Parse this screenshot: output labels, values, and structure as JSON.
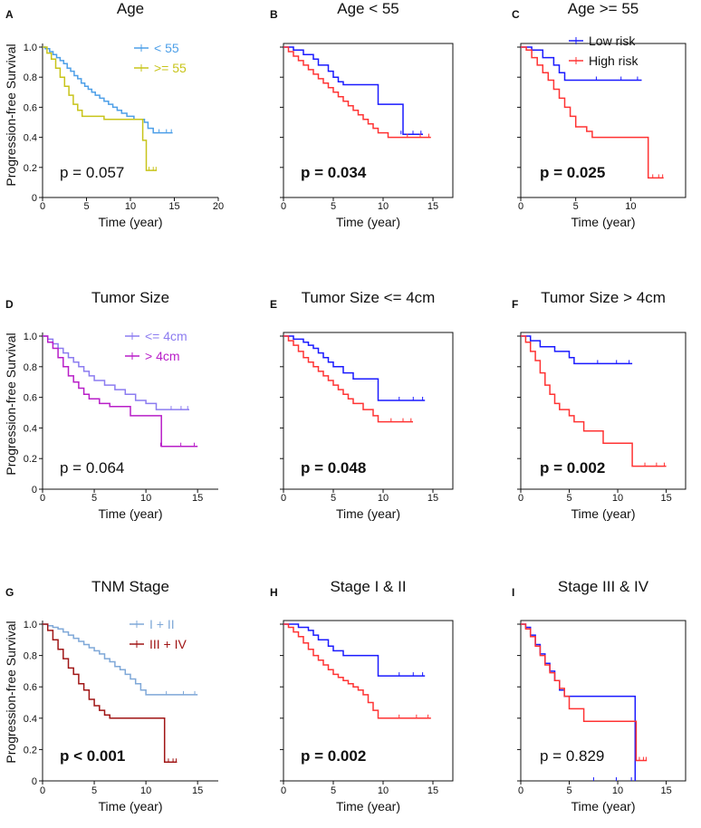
{
  "figure": {
    "y_axis_label": "Progression-free Survival"
  },
  "colors": {
    "low_risk": "#1a1aff",
    "high_risk": "#ff3333",
    "age_lt55": "#4d9fe8",
    "age_ge55": "#c8c41a",
    "size_le4": "#8c7cf0",
    "size_gt4": "#b81ec8",
    "stage_12": "#7fa8d8",
    "stage_34": "#a01515"
  },
  "chart_data": [
    {
      "letter": "A",
      "title": "Age",
      "type": "line",
      "subtype": "kaplan-meier",
      "xlabel": "Time (year)",
      "ylabel": "Progression-free Survival",
      "xlim": [
        0,
        20
      ],
      "ylim": [
        0,
        1.0
      ],
      "xticks": [
        "0",
        "5",
        "10",
        "15",
        "20"
      ],
      "yticks": [
        "0",
        "0.2",
        "0.4",
        "0.6",
        "0.8",
        "1.0"
      ],
      "legend": "top-right",
      "p_value": "p = 0.057",
      "p_bold": false,
      "series": [
        {
          "name": "< 55",
          "color_key": "age_lt55",
          "x": [
            0,
            0.3,
            0.8,
            1.2,
            1.6,
            2.0,
            2.4,
            2.8,
            3.2,
            3.6,
            4.0,
            4.4,
            4.8,
            5.2,
            5.6,
            6.0,
            6.5,
            7.0,
            7.5,
            8.0,
            8.5,
            9.0,
            9.6,
            10.4,
            11.6,
            12.0,
            12.6,
            14.8
          ],
          "y": [
            1.0,
            0.99,
            0.97,
            0.95,
            0.93,
            0.91,
            0.89,
            0.86,
            0.84,
            0.81,
            0.79,
            0.76,
            0.74,
            0.72,
            0.7,
            0.68,
            0.66,
            0.64,
            0.62,
            0.6,
            0.58,
            0.56,
            0.54,
            0.52,
            0.5,
            0.46,
            0.43,
            0.43
          ]
        },
        {
          "name": ">= 55",
          "color_key": "age_ge55",
          "x": [
            0,
            0.5,
            1.0,
            1.5,
            2.0,
            2.5,
            3.0,
            3.5,
            4.0,
            4.5,
            5.5,
            7.0,
            11.4,
            11.8,
            13.0
          ],
          "y": [
            1.0,
            0.96,
            0.92,
            0.86,
            0.8,
            0.74,
            0.68,
            0.62,
            0.58,
            0.54,
            0.54,
            0.52,
            0.38,
            0.18,
            0.18
          ]
        }
      ]
    },
    {
      "letter": "B",
      "title": "Age < 55",
      "type": "line",
      "subtype": "kaplan-meier",
      "xlabel": "Time (year)",
      "xlim": [
        0,
        17
      ],
      "ylim": [
        0,
        1.0
      ],
      "xticks": [
        "0",
        "5",
        "10",
        "15"
      ],
      "p_value": "p = 0.034",
      "p_bold": true,
      "series": [
        {
          "name": "Low risk",
          "color_key": "low_risk",
          "x": [
            0,
            1.0,
            2.0,
            3.0,
            3.5,
            4.5,
            5.0,
            5.5,
            6.0,
            7.0,
            9.5,
            10.0,
            12.0,
            14.0
          ],
          "y": [
            1.0,
            0.98,
            0.95,
            0.92,
            0.88,
            0.84,
            0.8,
            0.77,
            0.75,
            0.75,
            0.62,
            0.62,
            0.42,
            0.42
          ]
        },
        {
          "name": "High risk",
          "color_key": "high_risk",
          "x": [
            0,
            0.5,
            1.0,
            1.5,
            2.0,
            2.5,
            3.0,
            3.5,
            4.0,
            4.5,
            5.0,
            5.5,
            6.0,
            6.5,
            7.0,
            7.5,
            8.0,
            8.5,
            9.0,
            9.5,
            10.5,
            12.0,
            14.8
          ],
          "y": [
            1.0,
            0.97,
            0.94,
            0.91,
            0.88,
            0.85,
            0.82,
            0.79,
            0.76,
            0.73,
            0.7,
            0.67,
            0.64,
            0.61,
            0.58,
            0.55,
            0.52,
            0.49,
            0.46,
            0.43,
            0.4,
            0.4,
            0.4
          ]
        }
      ]
    },
    {
      "letter": "C",
      "title": "Age >= 55",
      "type": "line",
      "subtype": "kaplan-meier",
      "xlabel": "Time (year)",
      "xlim": [
        0,
        15
      ],
      "ylim": [
        0,
        1.0
      ],
      "xticks": [
        "0",
        "5",
        "10"
      ],
      "legend": "top-right",
      "p_value": "p = 0.025",
      "p_bold": true,
      "series": [
        {
          "name": "Low risk",
          "color_key": "low_risk",
          "x": [
            0,
            1.0,
            2.0,
            3.0,
            3.5,
            4.0,
            11.0
          ],
          "y": [
            1.0,
            0.98,
            0.93,
            0.88,
            0.83,
            0.78,
            0.78
          ]
        },
        {
          "name": "High risk",
          "color_key": "high_risk",
          "x": [
            0,
            0.5,
            1.0,
            1.5,
            2.0,
            2.5,
            3.0,
            3.5,
            4.0,
            4.5,
            5.0,
            6.0,
            6.5,
            11.2,
            11.6,
            13.0
          ],
          "y": [
            1.0,
            0.98,
            0.93,
            0.88,
            0.83,
            0.78,
            0.72,
            0.66,
            0.6,
            0.54,
            0.47,
            0.44,
            0.4,
            0.4,
            0.13,
            0.13
          ]
        }
      ]
    },
    {
      "letter": "D",
      "title": "Tumor Size",
      "type": "line",
      "subtype": "kaplan-meier",
      "xlabel": "Time (year)",
      "ylabel": "Progression-free Survival",
      "xlim": [
        0,
        17
      ],
      "ylim": [
        0,
        1.0
      ],
      "xticks": [
        "0",
        "5",
        "10",
        "15"
      ],
      "yticks": [
        "0",
        "0.2",
        "0.4",
        "0.6",
        "0.8",
        "1.0"
      ],
      "legend": "top-right",
      "p_value": "p = 0.064",
      "p_bold": false,
      "series": [
        {
          "name": "<= 4cm",
          "color_key": "size_le4",
          "x": [
            0,
            0.5,
            1.0,
            1.5,
            2.0,
            2.5,
            3.0,
            3.5,
            4.0,
            4.5,
            5.0,
            6.0,
            7.0,
            8.0,
            9.0,
            10.0,
            11.0,
            12.0,
            14.2
          ],
          "y": [
            1.0,
            0.98,
            0.95,
            0.92,
            0.89,
            0.86,
            0.83,
            0.8,
            0.77,
            0.74,
            0.71,
            0.68,
            0.65,
            0.62,
            0.58,
            0.56,
            0.52,
            0.52,
            0.52
          ]
        },
        {
          "name": "> 4cm",
          "color_key": "size_gt4",
          "x": [
            0,
            0.5,
            1.0,
            1.5,
            2.0,
            2.5,
            3.0,
            3.5,
            4.0,
            4.5,
            5.5,
            6.5,
            8.5,
            11.5,
            15.0
          ],
          "y": [
            1.0,
            0.96,
            0.92,
            0.86,
            0.8,
            0.74,
            0.7,
            0.66,
            0.62,
            0.59,
            0.56,
            0.54,
            0.48,
            0.28,
            0.28
          ]
        }
      ]
    },
    {
      "letter": "E",
      "title": "Tumor Size <= 4cm",
      "type": "line",
      "subtype": "kaplan-meier",
      "xlabel": "Time (year)",
      "xlim": [
        0,
        17
      ],
      "ylim": [
        0,
        1.0
      ],
      "xticks": [
        "0",
        "5",
        "10",
        "15"
      ],
      "p_value": "p = 0.048",
      "p_bold": true,
      "series": [
        {
          "name": "Low risk",
          "color_key": "low_risk",
          "x": [
            0,
            1.0,
            2.0,
            2.5,
            3.0,
            3.5,
            4.0,
            4.5,
            5.0,
            6.0,
            7.0,
            9.5,
            10.0,
            14.2
          ],
          "y": [
            1.0,
            0.98,
            0.96,
            0.94,
            0.92,
            0.89,
            0.86,
            0.83,
            0.8,
            0.76,
            0.72,
            0.58,
            0.58,
            0.58
          ]
        },
        {
          "name": "High risk",
          "color_key": "high_risk",
          "x": [
            0,
            0.5,
            1.0,
            1.5,
            2.0,
            2.5,
            3.0,
            3.5,
            4.0,
            4.5,
            5.0,
            5.5,
            6.0,
            6.5,
            7.0,
            8.0,
            9.0,
            9.5,
            13.0
          ],
          "y": [
            1.0,
            0.97,
            0.94,
            0.9,
            0.86,
            0.83,
            0.8,
            0.77,
            0.74,
            0.71,
            0.68,
            0.65,
            0.62,
            0.59,
            0.56,
            0.52,
            0.48,
            0.44,
            0.44
          ]
        }
      ]
    },
    {
      "letter": "F",
      "title": "Tumor Size > 4cm",
      "type": "line",
      "subtype": "kaplan-meier",
      "xlabel": "Time (year)",
      "xlim": [
        0,
        17
      ],
      "ylim": [
        0,
        1.0
      ],
      "xticks": [
        "0",
        "5",
        "10",
        "15"
      ],
      "p_value": "p = 0.002",
      "p_bold": true,
      "series": [
        {
          "name": "Low risk",
          "color_key": "low_risk",
          "x": [
            0,
            1.0,
            2.0,
            3.5,
            5.0,
            5.5,
            11.5
          ],
          "y": [
            1.0,
            0.97,
            0.93,
            0.9,
            0.86,
            0.82,
            0.82
          ]
        },
        {
          "name": "High risk",
          "color_key": "high_risk",
          "x": [
            0,
            0.5,
            1.0,
            1.5,
            2.0,
            2.5,
            3.0,
            3.5,
            4.0,
            5.0,
            5.5,
            6.5,
            8.5,
            11.0,
            11.5,
            15.0
          ],
          "y": [
            1.0,
            0.96,
            0.9,
            0.84,
            0.76,
            0.68,
            0.62,
            0.56,
            0.52,
            0.48,
            0.44,
            0.38,
            0.3,
            0.3,
            0.15,
            0.15
          ]
        }
      ]
    },
    {
      "letter": "G",
      "title": "TNM Stage",
      "type": "line",
      "subtype": "kaplan-meier",
      "xlabel": "Time (year)",
      "ylabel": "Progression-free Survival",
      "xlim": [
        0,
        17
      ],
      "ylim": [
        0,
        1.0
      ],
      "xticks": [
        "0",
        "5",
        "10",
        "15"
      ],
      "yticks": [
        "0",
        "0.2",
        "0.4",
        "0.6",
        "0.8",
        "1.0"
      ],
      "legend": "top-right",
      "p_value": "p < 0.001",
      "p_bold": true,
      "series": [
        {
          "name": "I + II",
          "color_key": "stage_12",
          "x": [
            0,
            0.5,
            1.0,
            1.5,
            2.0,
            2.5,
            3.0,
            3.5,
            4.0,
            4.5,
            5.0,
            5.5,
            6.0,
            6.5,
            7.0,
            7.5,
            8.0,
            8.5,
            9.0,
            9.5,
            10.0,
            15.0
          ],
          "y": [
            1.0,
            0.99,
            0.98,
            0.97,
            0.95,
            0.93,
            0.91,
            0.89,
            0.87,
            0.85,
            0.83,
            0.81,
            0.78,
            0.76,
            0.73,
            0.71,
            0.68,
            0.65,
            0.62,
            0.58,
            0.55,
            0.55
          ]
        },
        {
          "name": "III + IV",
          "color_key": "stage_34",
          "x": [
            0,
            0.5,
            1.0,
            1.5,
            2.0,
            2.5,
            3.0,
            3.5,
            4.0,
            4.5,
            5.0,
            5.5,
            6.0,
            6.5,
            11.5,
            11.8,
            13.0
          ],
          "y": [
            1.0,
            0.96,
            0.9,
            0.84,
            0.78,
            0.72,
            0.68,
            0.62,
            0.58,
            0.52,
            0.48,
            0.45,
            0.42,
            0.4,
            0.4,
            0.12,
            0.12
          ]
        }
      ]
    },
    {
      "letter": "H",
      "title": "Stage I & II",
      "type": "line",
      "subtype": "kaplan-meier",
      "xlabel": "Time (year)",
      "xlim": [
        0,
        17
      ],
      "ylim": [
        0,
        1.0
      ],
      "xticks": [
        "0",
        "5",
        "10",
        "15"
      ],
      "p_value": "p = 0.002",
      "p_bold": true,
      "series": [
        {
          "name": "Low risk",
          "color_key": "low_risk",
          "x": [
            0,
            1.5,
            2.5,
            3.0,
            3.5,
            4.5,
            5.0,
            6.0,
            9.5,
            10.0,
            14.2
          ],
          "y": [
            1.0,
            0.98,
            0.96,
            0.93,
            0.9,
            0.86,
            0.83,
            0.8,
            0.67,
            0.67,
            0.67
          ]
        },
        {
          "name": "High risk",
          "color_key": "high_risk",
          "x": [
            0,
            0.5,
            1.0,
            1.5,
            2.0,
            2.5,
            3.0,
            3.5,
            4.0,
            4.5,
            5.0,
            5.5,
            6.0,
            6.5,
            7.0,
            7.5,
            8.0,
            8.5,
            9.0,
            9.5,
            14.8
          ],
          "y": [
            1.0,
            0.98,
            0.95,
            0.92,
            0.88,
            0.84,
            0.8,
            0.77,
            0.74,
            0.71,
            0.68,
            0.66,
            0.64,
            0.62,
            0.6,
            0.58,
            0.55,
            0.5,
            0.45,
            0.4,
            0.4
          ]
        }
      ]
    },
    {
      "letter": "I",
      "title": "Stage III & IV",
      "type": "line",
      "subtype": "kaplan-meier",
      "xlabel": "Time (year)",
      "xlim": [
        0,
        17
      ],
      "ylim": [
        0,
        1.0
      ],
      "xticks": [
        "0",
        "5",
        "10",
        "15"
      ],
      "p_value": "p = 0.829",
      "p_bold": false,
      "series": [
        {
          "name": "Low risk",
          "color_key": "low_risk",
          "x": [
            0,
            0.5,
            1.0,
            1.5,
            2.0,
            2.5,
            3.0,
            3.5,
            4.0,
            4.5,
            11.8
          ],
          "y": [
            1.0,
            0.98,
            0.93,
            0.87,
            0.81,
            0.75,
            0.7,
            0.64,
            0.58,
            0.54,
            0.0
          ]
        },
        {
          "name": "High risk",
          "color_key": "high_risk",
          "x": [
            0,
            0.5,
            1.0,
            1.5,
            2.0,
            2.5,
            3.0,
            3.5,
            4.0,
            4.5,
            5.0,
            6.5,
            11.6,
            11.9,
            13.0
          ],
          "y": [
            1.0,
            0.97,
            0.92,
            0.86,
            0.8,
            0.74,
            0.69,
            0.64,
            0.59,
            0.54,
            0.46,
            0.38,
            0.38,
            0.13,
            0.13
          ]
        }
      ]
    }
  ]
}
